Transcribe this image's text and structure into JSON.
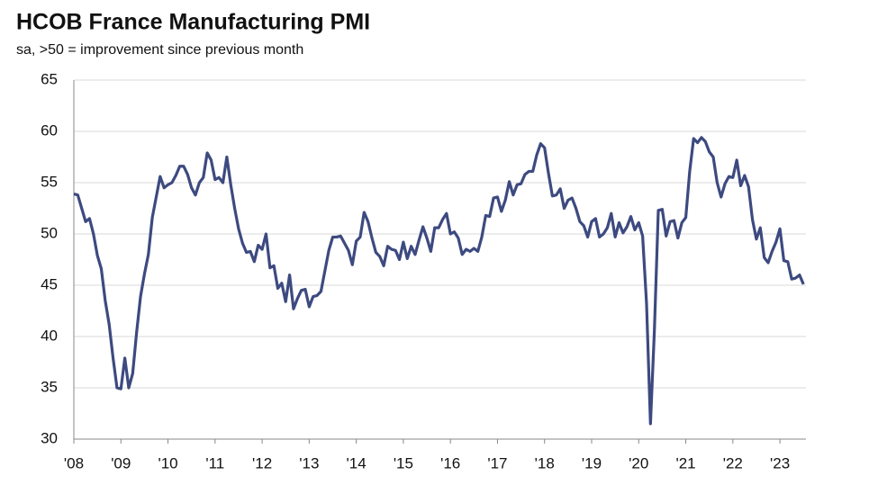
{
  "chart_data": {
    "type": "line",
    "title": "HCOB France Manufacturing PMI",
    "subtitle": "sa, >50 = improvement since previous month",
    "categories": [
      "'08",
      null,
      null,
      null,
      null,
      null,
      null,
      null,
      null,
      null,
      null,
      null,
      "'09",
      null,
      null,
      null,
      null,
      null,
      null,
      null,
      null,
      null,
      null,
      null,
      "'10",
      null,
      null,
      null,
      null,
      null,
      null,
      null,
      null,
      null,
      null,
      null,
      "'11",
      null,
      null,
      null,
      null,
      null,
      null,
      null,
      null,
      null,
      null,
      null,
      "'12",
      null,
      null,
      null,
      null,
      null,
      null,
      null,
      null,
      null,
      null,
      null,
      "'13",
      null,
      null,
      null,
      null,
      null,
      null,
      null,
      null,
      null,
      null,
      null,
      "'14",
      null,
      null,
      null,
      null,
      null,
      null,
      null,
      null,
      null,
      null,
      null,
      "'15",
      null,
      null,
      null,
      null,
      null,
      null,
      null,
      null,
      null,
      null,
      null,
      "'16",
      null,
      null,
      null,
      null,
      null,
      null,
      null,
      null,
      null,
      null,
      null,
      "'17",
      null,
      null,
      null,
      null,
      null,
      null,
      null,
      null,
      null,
      null,
      null,
      "'18",
      null,
      null,
      null,
      null,
      null,
      null,
      null,
      null,
      null,
      null,
      null,
      "'19",
      null,
      null,
      null,
      null,
      null,
      null,
      null,
      null,
      null,
      null,
      null,
      "'20",
      null,
      null,
      null,
      null,
      null,
      null,
      null,
      null,
      null,
      null,
      null,
      "'21",
      null,
      null,
      null,
      null,
      null,
      null,
      null,
      null,
      null,
      null,
      null,
      "'22",
      null,
      null,
      null,
      null,
      null,
      null,
      null,
      null,
      null,
      null,
      null,
      "'23",
      null,
      null,
      null,
      null,
      null,
      null
    ],
    "series": [
      {
        "color": "#3d4a80",
        "values": [
          53.9,
          53.8,
          52.5,
          51.2,
          51.5,
          50.0,
          47.9,
          46.6,
          43.5,
          41.2,
          37.9,
          35.0,
          34.9,
          37.9,
          35.0,
          36.4,
          40.4,
          43.9,
          46.1,
          48.0,
          51.6,
          53.6,
          55.6,
          54.5,
          54.8,
          55.0,
          55.7,
          56.6,
          56.6,
          55.8,
          54.5,
          53.8,
          55.0,
          55.5,
          57.9,
          57.2,
          55.3,
          55.5,
          55.0,
          57.5,
          54.8,
          52.5,
          50.5,
          49.1,
          48.2,
          48.3,
          47.3,
          48.9,
          48.5,
          50.0,
          46.7,
          46.9,
          44.7,
          45.2,
          43.4,
          46.0,
          42.7,
          43.7,
          44.5,
          44.6,
          42.9,
          43.9,
          44.0,
          44.4,
          46.4,
          48.4,
          49.7,
          49.7,
          49.8,
          49.1,
          48.4,
          47.0,
          49.3,
          49.7,
          52.1,
          51.2,
          49.6,
          48.2,
          47.8,
          46.9,
          48.8,
          48.5,
          48.4,
          47.5,
          49.2,
          47.6,
          48.8,
          48.0,
          49.4,
          50.7,
          49.6,
          48.3,
          50.6,
          50.6,
          51.4,
          52.0,
          50.0,
          50.2,
          49.6,
          48.0,
          48.5,
          48.3,
          48.6,
          48.3,
          49.7,
          51.8,
          51.7,
          53.5,
          53.6,
          52.2,
          53.3,
          55.1,
          53.8,
          54.8,
          54.9,
          55.8,
          56.1,
          56.1,
          57.7,
          58.8,
          58.4,
          55.9,
          53.7,
          53.8,
          54.4,
          52.5,
          53.3,
          53.5,
          52.5,
          51.2,
          50.8,
          49.7,
          51.2,
          51.5,
          49.7,
          50.0,
          50.6,
          52.0,
          49.7,
          51.1,
          50.1,
          50.7,
          51.7,
          50.4,
          51.1,
          49.8,
          43.2,
          31.5,
          40.6,
          52.3,
          52.4,
          49.8,
          51.2,
          51.3,
          49.6,
          51.1,
          51.6,
          56.1,
          59.3,
          58.9,
          59.4,
          59.0,
          58.0,
          57.5,
          55.0,
          53.6,
          54.9,
          55.6,
          55.5,
          57.2,
          54.7,
          55.7,
          54.6,
          51.4,
          49.5,
          50.6,
          47.7,
          47.2,
          48.3,
          49.2,
          50.5,
          47.4,
          47.3,
          45.6,
          45.7,
          46.0,
          45.1
        ]
      }
    ],
    "ylim": [
      30,
      65
    ],
    "yticks": [
      30,
      35,
      40,
      45,
      50,
      55,
      60,
      65
    ],
    "grid": true
  }
}
